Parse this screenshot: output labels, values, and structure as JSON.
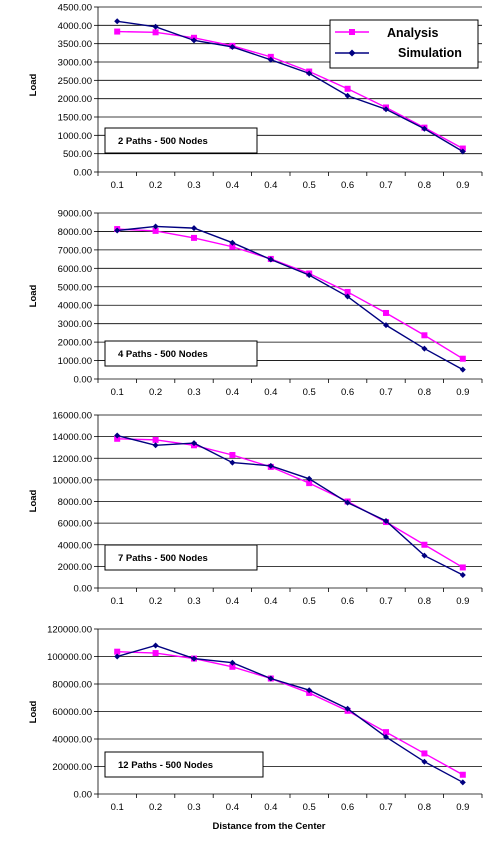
{
  "legend": {
    "analysis": "Analysis",
    "simulation": "Simulation"
  },
  "colors": {
    "analysis": "#ff00ff",
    "simulation": "#000080"
  },
  "xlabel": "Distance from the Center",
  "chart_data": [
    {
      "type": "line",
      "label": "2 Paths - 500 Nodes",
      "ylabel": "Load",
      "categories": [
        "0.1",
        "0.2",
        "0.3",
        "0.4",
        "0.4",
        "0.5",
        "0.6",
        "0.7",
        "0.8",
        "0.9"
      ],
      "ylim": [
        0,
        4500
      ],
      "yticks": [
        "0.00",
        "500.00",
        "1000.00",
        "1500.00",
        "2000.00",
        "2500.00",
        "3000.00",
        "3500.00",
        "4000.00",
        "4500.00"
      ],
      "series": [
        {
          "name": "Analysis",
          "values": [
            3830,
            3810,
            3660,
            3440,
            3140,
            2740,
            2270,
            1760,
            1210,
            640
          ]
        },
        {
          "name": "Simulation",
          "values": [
            4110,
            3960,
            3590,
            3410,
            3060,
            2690,
            2080,
            1710,
            1180,
            560
          ]
        }
      ]
    },
    {
      "type": "line",
      "label": "4 Paths - 500 Nodes",
      "ylabel": "Load",
      "categories": [
        "0.1",
        "0.2",
        "0.3",
        "0.4",
        "0.4",
        "0.5",
        "0.6",
        "0.7",
        "0.8",
        "0.9"
      ],
      "ylim": [
        0,
        9000
      ],
      "yticks": [
        "0.00",
        "1000.00",
        "2000.00",
        "3000.00",
        "4000.00",
        "5000.00",
        "6000.00",
        "7000.00",
        "8000.00",
        "9000.00"
      ],
      "series": [
        {
          "name": "Analysis",
          "values": [
            8130,
            8030,
            7650,
            7170,
            6510,
            5720,
            4720,
            3580,
            2370,
            1100
          ]
        },
        {
          "name": "Simulation",
          "values": [
            8050,
            8270,
            8180,
            7390,
            6480,
            5630,
            4470,
            2920,
            1650,
            510
          ]
        }
      ]
    },
    {
      "type": "line",
      "label": "7 Paths - 500 Nodes",
      "ylabel": "Load",
      "categories": [
        "0.1",
        "0.2",
        "0.3",
        "0.4",
        "0.4",
        "0.5",
        "0.6",
        "0.7",
        "0.8",
        "0.9"
      ],
      "ylim": [
        0,
        16000
      ],
      "yticks": [
        "0.00",
        "2000.00",
        "4000.00",
        "6000.00",
        "8000.00",
        "10000.00",
        "12000.00",
        "14000.00",
        "16000.00"
      ],
      "series": [
        {
          "name": "Analysis",
          "values": [
            13800,
            13700,
            13200,
            12300,
            11200,
            9700,
            8000,
            6100,
            4000,
            1900
          ]
        },
        {
          "name": "Simulation",
          "values": [
            14100,
            13200,
            13400,
            11600,
            11300,
            10100,
            7900,
            6200,
            3000,
            1200
          ]
        }
      ]
    },
    {
      "type": "line",
      "label": "12 Paths - 500 Nodes",
      "ylabel": "Load",
      "categories": [
        "0.1",
        "0.2",
        "0.3",
        "0.4",
        "0.4",
        "0.5",
        "0.6",
        "0.7",
        "0.8",
        "0.9"
      ],
      "ylim": [
        0,
        120000
      ],
      "yticks": [
        "0.00",
        "20000.00",
        "40000.00",
        "60000.00",
        "80000.00",
        "100000.00",
        "120000.00"
      ],
      "series": [
        {
          "name": "Analysis",
          "values": [
            103500,
            102500,
            98500,
            92500,
            84000,
            73500,
            60500,
            45000,
            29500,
            14000
          ]
        },
        {
          "name": "Simulation",
          "values": [
            100000,
            108000,
            98500,
            95500,
            84000,
            75500,
            62000,
            41500,
            23500,
            8500
          ]
        }
      ]
    }
  ]
}
